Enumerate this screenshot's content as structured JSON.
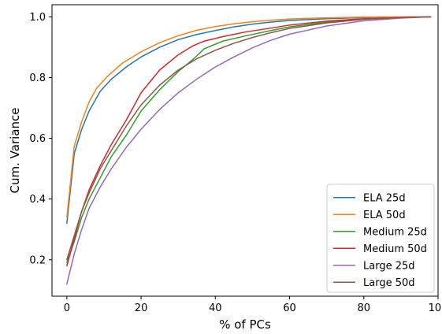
{
  "chart_data": {
    "type": "line",
    "title": "",
    "xlabel": "% of PCs",
    "ylabel": "Cum. Variance",
    "xlim": [
      -4,
      100
    ],
    "ylim": [
      0.08,
      1.04
    ],
    "x_ticks": [
      0,
      20,
      40,
      60,
      80,
      100
    ],
    "y_ticks": [
      0.2,
      0.4,
      0.6,
      0.8,
      1.0
    ],
    "x_tick_labels": [
      "0",
      "20",
      "40",
      "60",
      "80",
      "100"
    ],
    "y_tick_labels": [
      "0.2",
      "0.4",
      "0.6",
      "0.8",
      "1.0"
    ],
    "grid": false,
    "legend_position": "lower-right",
    "series": [
      {
        "name": "ELA 25d",
        "color": "#1f77b4",
        "points": [
          [
            0,
            0.32
          ],
          [
            2,
            0.55
          ],
          [
            4,
            0.63
          ],
          [
            6,
            0.69
          ],
          [
            9,
            0.755
          ],
          [
            12,
            0.795
          ],
          [
            16,
            0.835
          ],
          [
            20,
            0.868
          ],
          [
            25,
            0.9
          ],
          [
            30,
            0.925
          ],
          [
            35,
            0.942
          ],
          [
            40,
            0.955
          ],
          [
            45,
            0.967
          ],
          [
            50,
            0.976
          ],
          [
            55,
            0.983
          ],
          [
            60,
            0.988
          ],
          [
            70,
            0.994
          ],
          [
            80,
            0.998
          ],
          [
            90,
            0.999
          ],
          [
            98,
            1.0
          ]
        ]
      },
      {
        "name": "ELA 50d",
        "color": "#ff7f0e",
        "points": [
          [
            0,
            0.34
          ],
          [
            2,
            0.575
          ],
          [
            4,
            0.655
          ],
          [
            6,
            0.72
          ],
          [
            8,
            0.765
          ],
          [
            11,
            0.805
          ],
          [
            15,
            0.848
          ],
          [
            20,
            0.885
          ],
          [
            25,
            0.915
          ],
          [
            30,
            0.938
          ],
          [
            35,
            0.956
          ],
          [
            40,
            0.968
          ],
          [
            45,
            0.977
          ],
          [
            50,
            0.984
          ],
          [
            55,
            0.989
          ],
          [
            60,
            0.993
          ],
          [
            70,
            0.997
          ],
          [
            80,
            0.999
          ],
          [
            90,
            1.0
          ],
          [
            98,
            1.0
          ]
        ]
      },
      {
        "name": "Medium 25d",
        "color": "#2ca02c",
        "points": [
          [
            0,
            0.19
          ],
          [
            2,
            0.26
          ],
          [
            4,
            0.34
          ],
          [
            6,
            0.4
          ],
          [
            9,
            0.47
          ],
          [
            12,
            0.54
          ],
          [
            16,
            0.61
          ],
          [
            20,
            0.69
          ],
          [
            25,
            0.76
          ],
          [
            30,
            0.82
          ],
          [
            34,
            0.86
          ],
          [
            37,
            0.895
          ],
          [
            42,
            0.92
          ],
          [
            48,
            0.937
          ],
          [
            55,
            0.955
          ],
          [
            60,
            0.967
          ],
          [
            70,
            0.983
          ],
          [
            80,
            0.993
          ],
          [
            90,
            0.998
          ],
          [
            98,
            1.0
          ]
        ]
      },
      {
        "name": "Medium 50d",
        "color": "#d62728",
        "points": [
          [
            0,
            0.18
          ],
          [
            2,
            0.27
          ],
          [
            4,
            0.36
          ],
          [
            6,
            0.43
          ],
          [
            9,
            0.51
          ],
          [
            12,
            0.58
          ],
          [
            16,
            0.66
          ],
          [
            20,
            0.75
          ],
          [
            25,
            0.825
          ],
          [
            30,
            0.875
          ],
          [
            34,
            0.905
          ],
          [
            37,
            0.92
          ],
          [
            42,
            0.935
          ],
          [
            48,
            0.95
          ],
          [
            55,
            0.963
          ],
          [
            60,
            0.973
          ],
          [
            70,
            0.986
          ],
          [
            80,
            0.994
          ],
          [
            90,
            0.998
          ],
          [
            98,
            1.0
          ]
        ]
      },
      {
        "name": "Large 25d",
        "color": "#9467bd",
        "points": [
          [
            0,
            0.12
          ],
          [
            2,
            0.22
          ],
          [
            4,
            0.3
          ],
          [
            6,
            0.37
          ],
          [
            9,
            0.44
          ],
          [
            12,
            0.5
          ],
          [
            16,
            0.57
          ],
          [
            20,
            0.63
          ],
          [
            25,
            0.695
          ],
          [
            30,
            0.75
          ],
          [
            35,
            0.795
          ],
          [
            40,
            0.835
          ],
          [
            45,
            0.868
          ],
          [
            50,
            0.898
          ],
          [
            55,
            0.923
          ],
          [
            60,
            0.943
          ],
          [
            70,
            0.97
          ],
          [
            80,
            0.987
          ],
          [
            90,
            0.996
          ],
          [
            98,
            1.0
          ]
        ]
      },
      {
        "name": "Large 50d",
        "color": "#8c564b",
        "points": [
          [
            0,
            0.2
          ],
          [
            2,
            0.28
          ],
          [
            4,
            0.36
          ],
          [
            6,
            0.42
          ],
          [
            9,
            0.5
          ],
          [
            12,
            0.56
          ],
          [
            16,
            0.64
          ],
          [
            20,
            0.71
          ],
          [
            25,
            0.775
          ],
          [
            30,
            0.825
          ],
          [
            35,
            0.862
          ],
          [
            40,
            0.89
          ],
          [
            45,
            0.913
          ],
          [
            50,
            0.932
          ],
          [
            55,
            0.948
          ],
          [
            60,
            0.962
          ],
          [
            70,
            0.98
          ],
          [
            80,
            0.992
          ],
          [
            90,
            0.998
          ],
          [
            98,
            1.0
          ]
        ]
      }
    ]
  }
}
